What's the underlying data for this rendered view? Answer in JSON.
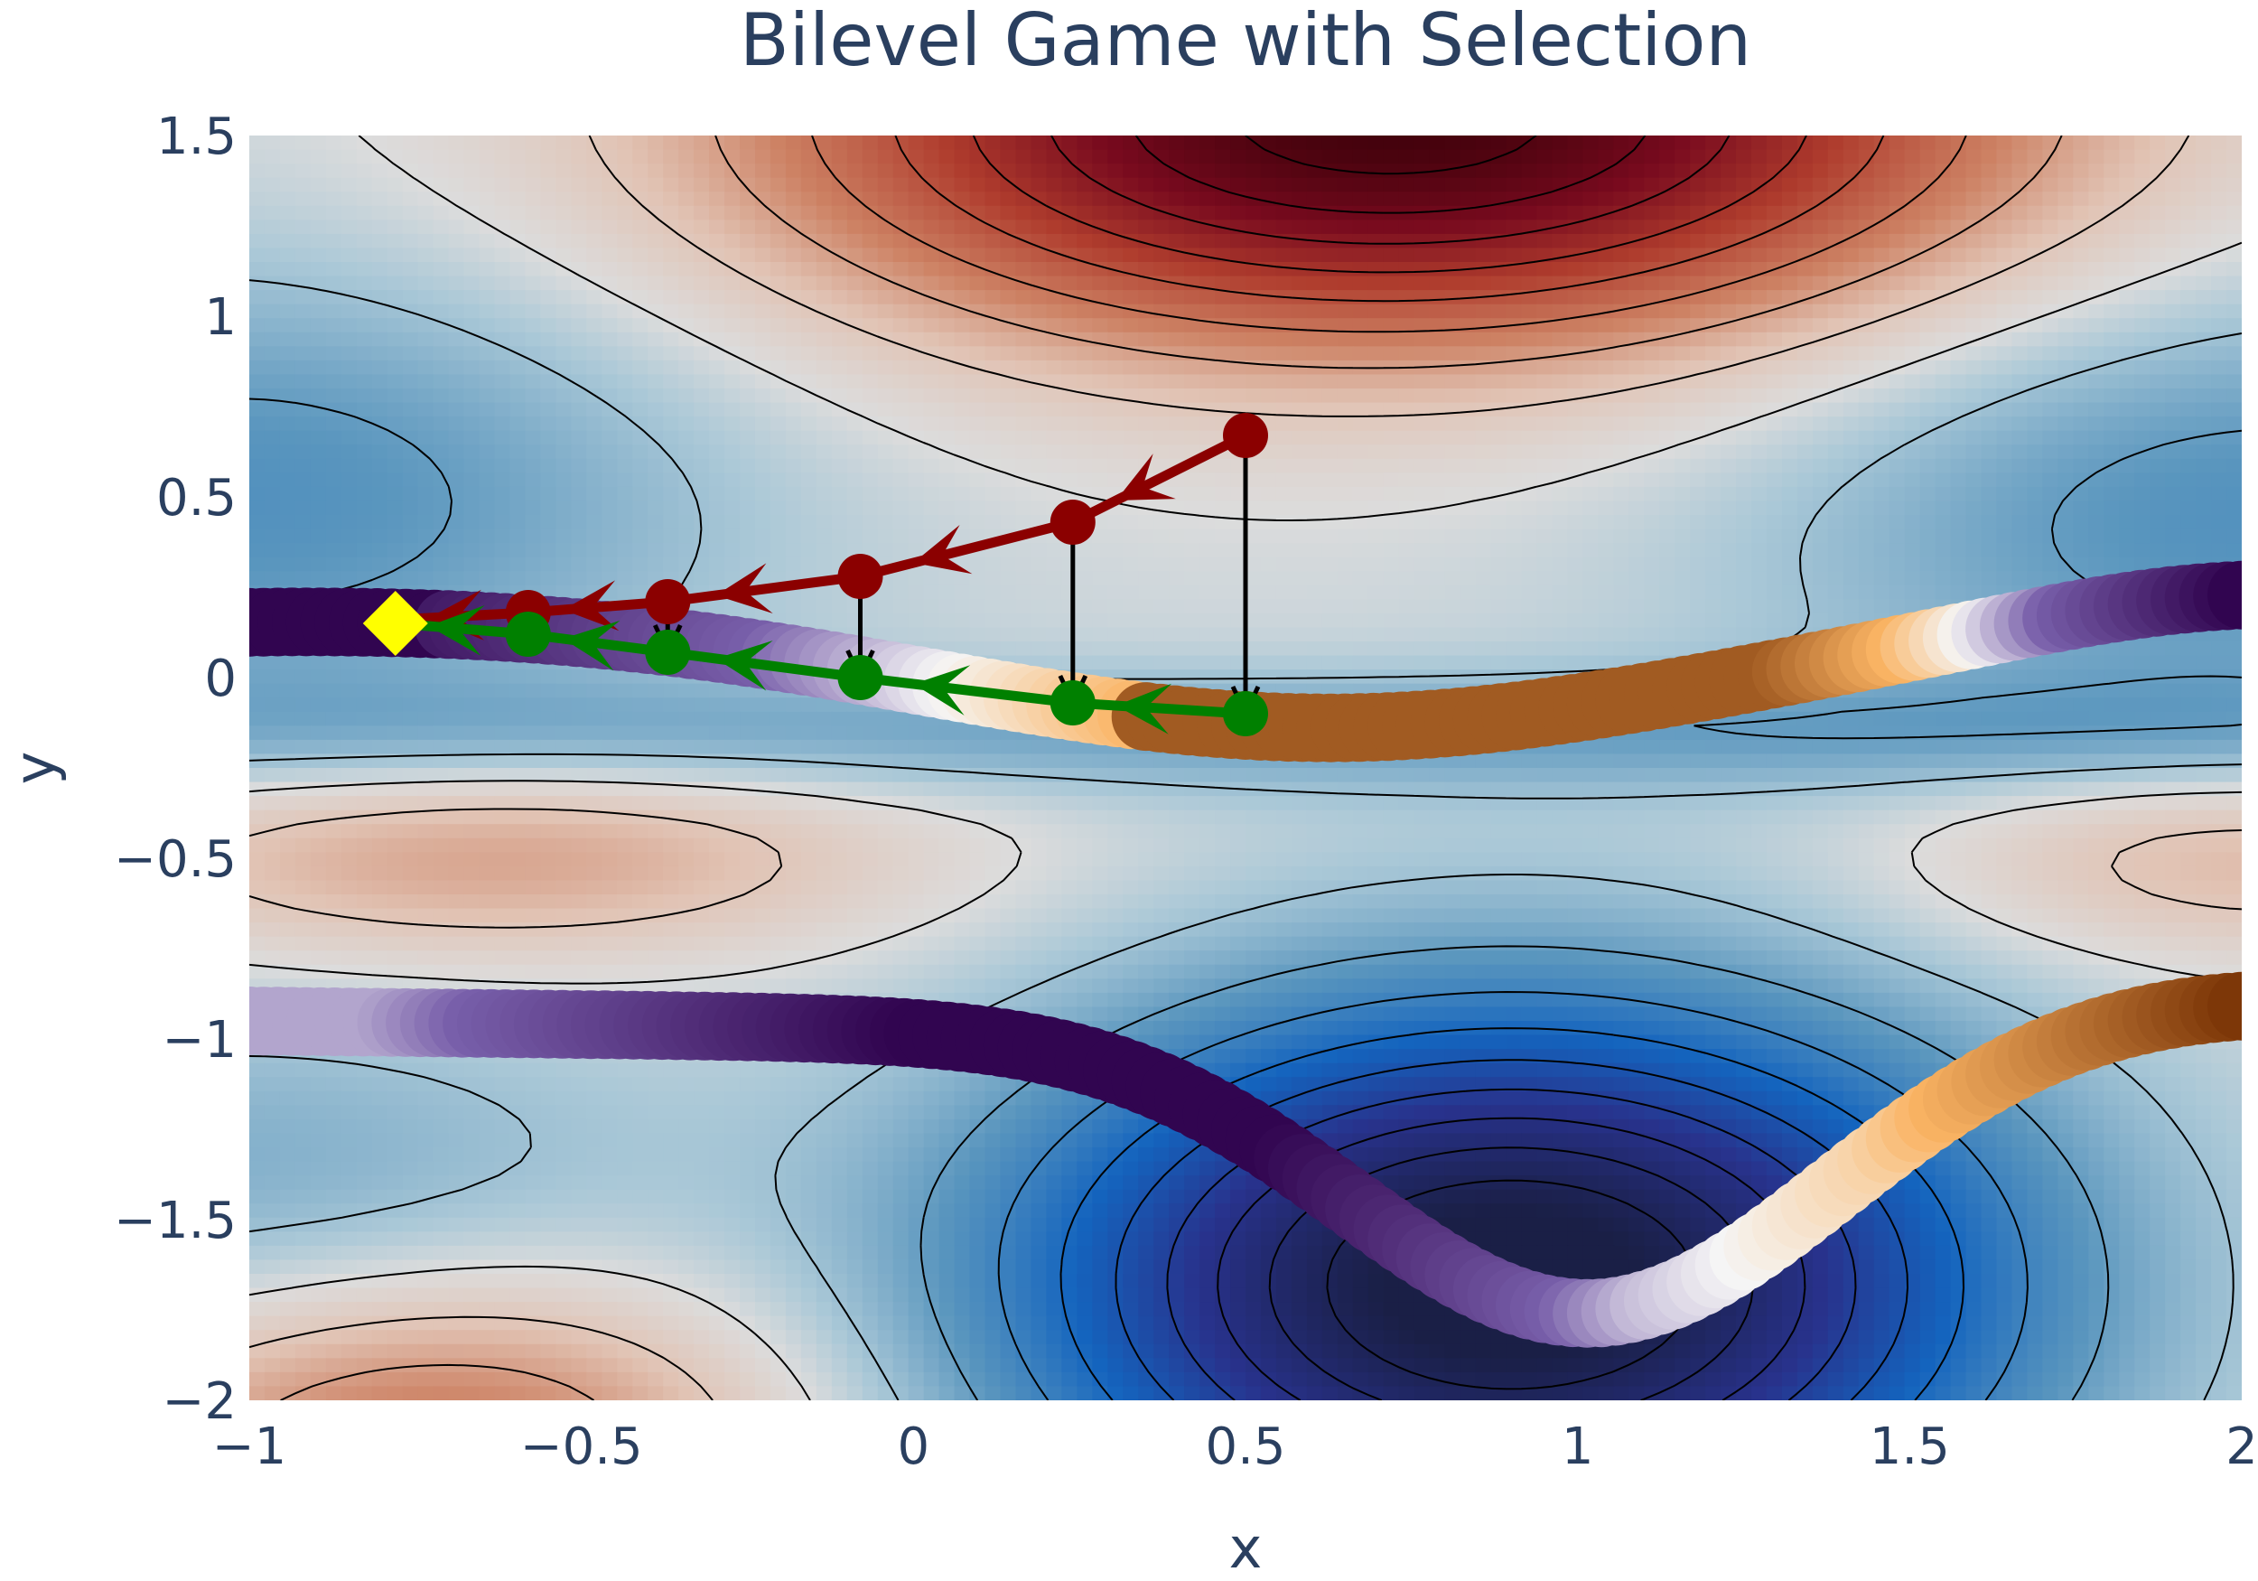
{
  "chart_data": {
    "type": "contour",
    "title": "Bilevel Game with Selection",
    "xlabel": "x",
    "ylabel": "y",
    "xlim": [
      -1,
      2
    ],
    "ylim": [
      -2,
      1.5
    ],
    "x_ticks": [
      {
        "value": -1,
        "label": "−1"
      },
      {
        "value": -0.5,
        "label": "−0.5"
      },
      {
        "value": 0,
        "label": "0"
      },
      {
        "value": 0.5,
        "label": "0.5"
      },
      {
        "value": 1,
        "label": "1"
      },
      {
        "value": 1.5,
        "label": "1.5"
      },
      {
        "value": 2,
        "label": "2"
      }
    ],
    "y_ticks": [
      {
        "value": 1.5,
        "label": "1.5"
      },
      {
        "value": 1,
        "label": "1"
      },
      {
        "value": 0.5,
        "label": "0.5"
      },
      {
        "value": 0,
        "label": "0"
      },
      {
        "value": -0.5,
        "label": "−0.5"
      },
      {
        "value": -1,
        "label": "−1"
      },
      {
        "value": -1.5,
        "label": "−1.5"
      },
      {
        "value": -2,
        "label": "−2"
      }
    ],
    "grid": false,
    "legend": "none",
    "colormap": {
      "low": "#1a1f46",
      "mid": "#dcdcdc",
      "high": "#3a0006"
    },
    "series": [
      {
        "style": "red-path",
        "color": "#8b0000",
        "x": [
          0.5,
          0.24,
          -0.08,
          -0.37,
          -0.58,
          -0.78
        ],
        "y": [
          0.67,
          0.43,
          0.28,
          0.21,
          0.18,
          0.16
        ]
      },
      {
        "style": "green-path",
        "color": "#008000",
        "x": [
          0.5,
          0.24,
          -0.08,
          -0.37,
          -0.58,
          -0.78
        ],
        "y": [
          -0.1,
          -0.07,
          0.0,
          0.07,
          0.12,
          0.15
        ]
      }
    ],
    "best_response_arrows": [
      {
        "x": 0.5,
        "y_from": 0.67,
        "y_to": -0.1
      },
      {
        "x": 0.24,
        "y_from": 0.43,
        "y_to": -0.07
      },
      {
        "x": -0.08,
        "y_from": 0.28,
        "y_to": 0.0
      },
      {
        "x": -0.37,
        "y_from": 0.21,
        "y_to": 0.07
      }
    ],
    "final_point": {
      "x": -0.78,
      "y": 0.15,
      "color": "#ffff00",
      "marker": "diamond"
    }
  }
}
